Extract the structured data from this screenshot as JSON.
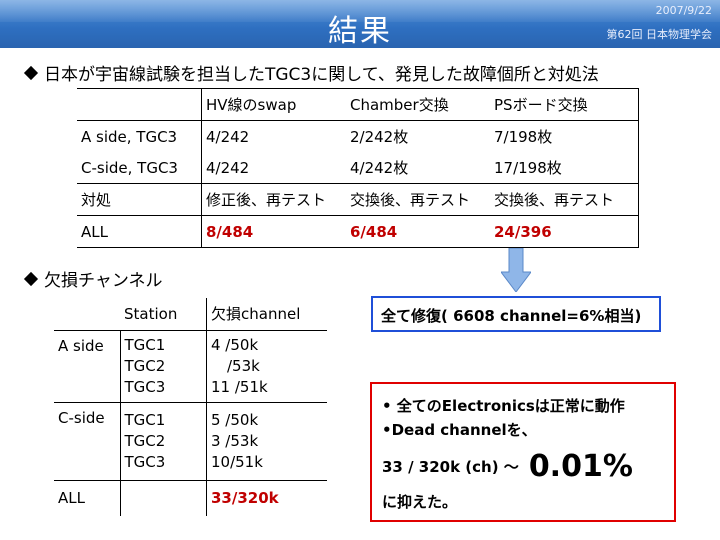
{
  "header": {
    "title": "結果",
    "date": "2007/9/22",
    "conference": "第62回 日本物理学会"
  },
  "bullet1": "日本が宇宙線試験を担当したTGC3に関して、発見した故障個所と対処法",
  "table1": {
    "headers": [
      "",
      "HV線のswap",
      "Chamber交換",
      "PSボード交換"
    ],
    "rows": [
      [
        "A side, TGC3",
        "4/242",
        "2/242枚",
        "7/198枚"
      ],
      [
        "C-side, TGC3",
        "4/242",
        "4/242枚",
        "17/198枚"
      ],
      [
        "対処",
        "修正後、再テスト",
        "交換後、再テスト",
        "交換後、再テスト"
      ],
      [
        "ALL",
        "8/484",
        "6/484",
        "24/396"
      ]
    ]
  },
  "bullet2": "欠損チャンネル",
  "table2": {
    "headers": [
      "",
      "Station",
      "欠損channel"
    ],
    "a_side": {
      "label": "A side",
      "stations": [
        "TGC1",
        "TGC2",
        "TGC3"
      ],
      "values": [
        "4 /50k",
        "/53k",
        "11 /51k"
      ]
    },
    "c_side": {
      "label": "C-side",
      "stations": [
        "TGC1",
        "TGC2",
        "TGC3"
      ],
      "values": [
        "5 /50k",
        "3 /53k",
        "10/51k"
      ]
    },
    "all": {
      "label": "ALL",
      "value": "33/320k"
    }
  },
  "box1": "全て修復( 6608 channel=6%相当)",
  "box2": {
    "line1": "• 全てのElectronicsは正常に動作",
    "line2": "•Dead channelを、",
    "line3": "33 / 320k (ch) ～",
    "big": "0.01%",
    "line4": "に抑えた。"
  },
  "colors": {
    "title_bar": "#2e6fc0",
    "red_text": "#c00000",
    "box1_border": "#1f4fd8",
    "box2_border": "#e00000",
    "arrow": "#8fb6e8"
  }
}
